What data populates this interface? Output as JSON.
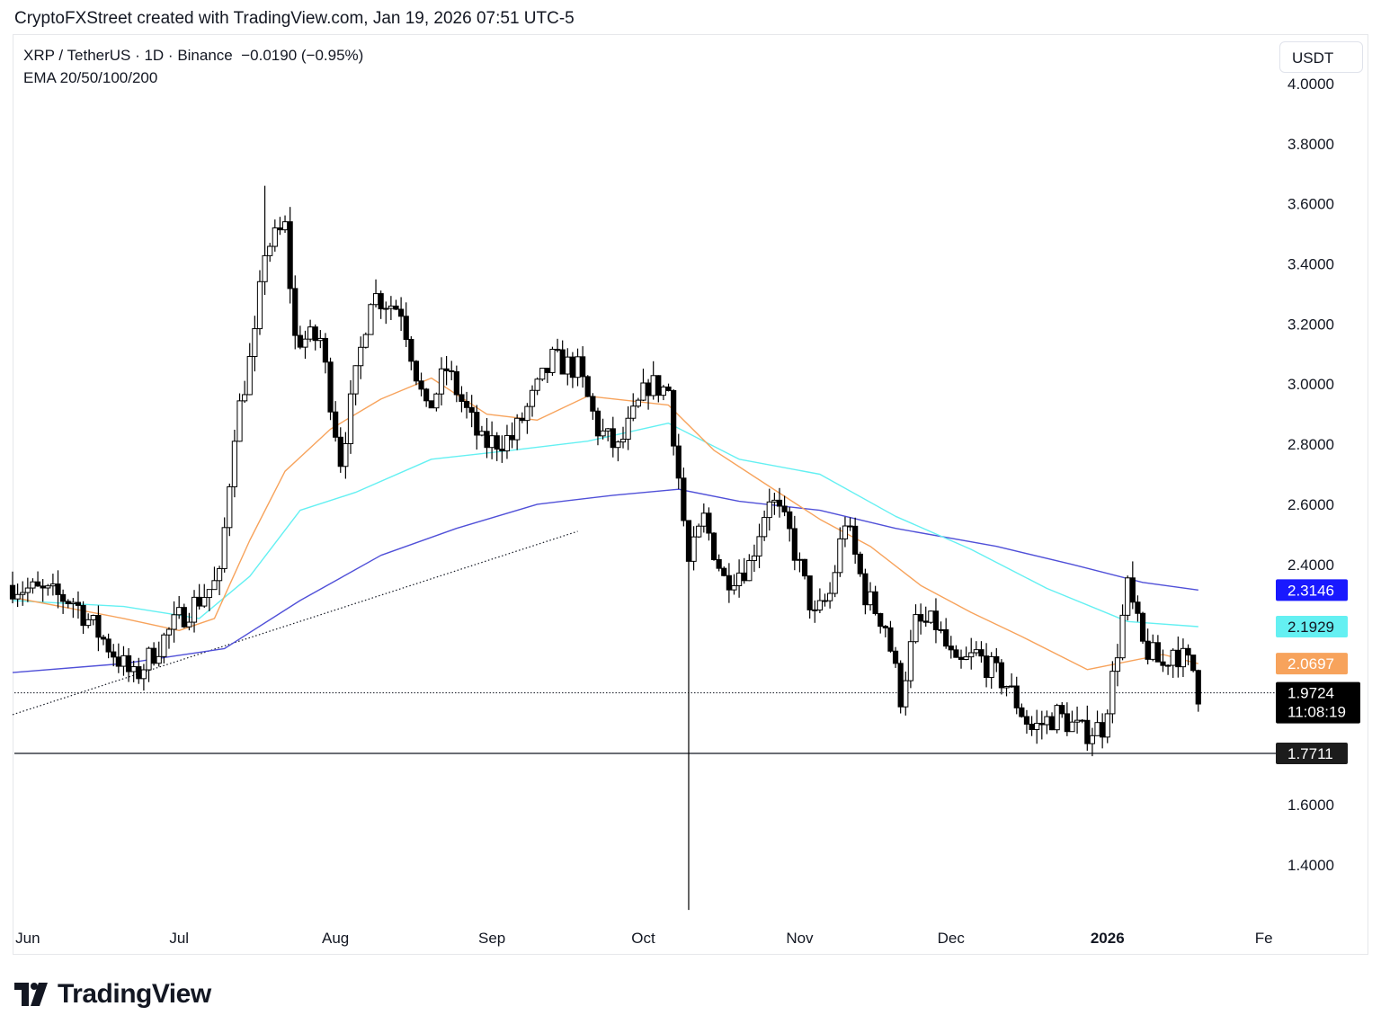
{
  "header": {
    "attribution": "CryptoFXStreet created with TradingView.com, Jan 19, 2026 07:51 UTC-5"
  },
  "legend": {
    "symbol_line": "XRP / TetherUS · 1D · Binance",
    "change": "−0.0190 (−0.95%)",
    "indicator": "EMA 20/50/100/200"
  },
  "toolbar": {
    "currency": "USDT"
  },
  "footer": {
    "brand": "TradingView"
  },
  "colors": {
    "ema20": "#f7a35c",
    "ema50": "#64f0f2",
    "ema100": "#1919ff",
    "ema200_line": "#5050d8",
    "candle": "#000000",
    "grid_text": "#131722"
  },
  "chart_data": {
    "type": "candlestick",
    "interval": "1D",
    "y_range": [
      1.24,
      4.05
    ],
    "y_ticks": [
      "4.0000",
      "3.8000",
      "3.6000",
      "3.4000",
      "3.2000",
      "3.0000",
      "2.8000",
      "2.6000",
      "2.4000",
      "1.6000",
      "1.4000"
    ],
    "x_ticks": [
      {
        "label": "Jun",
        "date": "2025-06-01",
        "bold": false
      },
      {
        "label": "Jul",
        "date": "2025-07-01",
        "bold": false
      },
      {
        "label": "Aug",
        "date": "2025-08-01",
        "bold": false
      },
      {
        "label": "Sep",
        "date": "2025-09-01",
        "bold": false
      },
      {
        "label": "Oct",
        "date": "2025-10-01",
        "bold": false
      },
      {
        "label": "Nov",
        "date": "2025-11-01",
        "bold": false
      },
      {
        "label": "Dec",
        "date": "2025-12-01",
        "bold": false
      },
      {
        "label": "2026",
        "date": "2026-01-01",
        "bold": true
      },
      {
        "label": "Fe",
        "date": "2026-02-01",
        "bold": false
      }
    ],
    "price_labels": [
      {
        "text": "2.3146",
        "value": 2.3146,
        "bg": "#1919ff",
        "fg": "#ffffff"
      },
      {
        "text": "2.1929",
        "value": 2.1929,
        "bg": "#64f0f2",
        "fg": "#131722"
      },
      {
        "text": "2.0697",
        "value": 2.0697,
        "bg": "#f7a35c",
        "fg": "#ffffff"
      },
      {
        "text": "1.9724",
        "value": 1.9724,
        "bg": "#000000",
        "fg": "#ffffff",
        "sub": "11:08:19"
      },
      {
        "text": "1.7711",
        "value": 1.7711,
        "bg": "#1c1c1c",
        "fg": "#ffffff"
      }
    ],
    "current_price": 1.9724,
    "support_level": 1.7711,
    "trendline": [
      {
        "date": "2025-05-29",
        "value": 1.9
      },
      {
        "date": "2025-09-18",
        "value": 2.51
      }
    ],
    "anchors": [
      {
        "date": "2025-05-29",
        "value": 2.33
      },
      {
        "date": "2025-06-10",
        "value": 2.28
      },
      {
        "date": "2025-06-22",
        "value": 2.02
      },
      {
        "date": "2025-07-01",
        "value": 2.22
      },
      {
        "date": "2025-07-09",
        "value": 2.35
      },
      {
        "date": "2025-07-12",
        "value": 2.85
      },
      {
        "date": "2025-07-16",
        "value": 3.15
      },
      {
        "date": "2025-07-18",
        "value": 3.45
      },
      {
        "date": "2025-07-22",
        "value": 3.52
      },
      {
        "date": "2025-07-24",
        "value": 3.15
      },
      {
        "date": "2025-07-29",
        "value": 3.15
      },
      {
        "date": "2025-08-02",
        "value": 2.75
      },
      {
        "date": "2025-08-05",
        "value": 3.02
      },
      {
        "date": "2025-08-08",
        "value": 3.3
      },
      {
        "date": "2025-08-14",
        "value": 3.25
      },
      {
        "date": "2025-08-19",
        "value": 2.9
      },
      {
        "date": "2025-08-23",
        "value": 3.05
      },
      {
        "date": "2025-08-30",
        "value": 2.8
      },
      {
        "date": "2025-09-05",
        "value": 2.82
      },
      {
        "date": "2025-09-13",
        "value": 3.08
      },
      {
        "date": "2025-09-18",
        "value": 3.05
      },
      {
        "date": "2025-09-22",
        "value": 2.85
      },
      {
        "date": "2025-09-26",
        "value": 2.78
      },
      {
        "date": "2025-10-02",
        "value": 3.0
      },
      {
        "date": "2025-10-06",
        "value": 2.98
      },
      {
        "date": "2025-10-10",
        "value": 2.4
      },
      {
        "date": "2025-10-13",
        "value": 2.55
      },
      {
        "date": "2025-10-17",
        "value": 2.35
      },
      {
        "date": "2025-10-22",
        "value": 2.4
      },
      {
        "date": "2025-10-26",
        "value": 2.63
      },
      {
        "date": "2025-10-30",
        "value": 2.5
      },
      {
        "date": "2025-11-04",
        "value": 2.22
      },
      {
        "date": "2025-11-07",
        "value": 2.3
      },
      {
        "date": "2025-11-10",
        "value": 2.55
      },
      {
        "date": "2025-11-14",
        "value": 2.3
      },
      {
        "date": "2025-11-18",
        "value": 2.2
      },
      {
        "date": "2025-11-21",
        "value": 1.96
      },
      {
        "date": "2025-11-24",
        "value": 2.2
      },
      {
        "date": "2025-11-28",
        "value": 2.2
      },
      {
        "date": "2025-12-02",
        "value": 2.05
      },
      {
        "date": "2025-12-06",
        "value": 2.1
      },
      {
        "date": "2025-12-12",
        "value": 2.0
      },
      {
        "date": "2025-12-17",
        "value": 1.85
      },
      {
        "date": "2025-12-22",
        "value": 1.9
      },
      {
        "date": "2025-12-27",
        "value": 1.84
      },
      {
        "date": "2025-12-31",
        "value": 1.86
      },
      {
        "date": "2026-01-02",
        "value": 2.02
      },
      {
        "date": "2026-01-05",
        "value": 2.32
      },
      {
        "date": "2026-01-08",
        "value": 2.13
      },
      {
        "date": "2026-01-12",
        "value": 2.06
      },
      {
        "date": "2026-01-14",
        "value": 2.12
      },
      {
        "date": "2026-01-18",
        "value": 2.05
      },
      {
        "date": "2026-01-19",
        "value": 1.9724
      }
    ],
    "events": [
      {
        "date": "2025-10-10",
        "high": 2.48,
        "low": 1.25
      },
      {
        "date": "2025-07-18",
        "high": 3.66
      },
      {
        "date": "2026-01-06",
        "high": 2.41
      }
    ],
    "ema20": [
      {
        "date": "2025-05-29",
        "value": 2.29
      },
      {
        "date": "2025-06-20",
        "value": 2.22
      },
      {
        "date": "2025-07-01",
        "value": 2.18
      },
      {
        "date": "2025-07-08",
        "value": 2.22
      },
      {
        "date": "2025-07-15",
        "value": 2.48
      },
      {
        "date": "2025-07-22",
        "value": 2.71
      },
      {
        "date": "2025-07-31",
        "value": 2.85
      },
      {
        "date": "2025-08-10",
        "value": 2.95
      },
      {
        "date": "2025-08-20",
        "value": 3.02
      },
      {
        "date": "2025-08-31",
        "value": 2.9
      },
      {
        "date": "2025-09-10",
        "value": 2.88
      },
      {
        "date": "2025-09-20",
        "value": 2.96
      },
      {
        "date": "2025-10-06",
        "value": 2.93
      },
      {
        "date": "2025-10-15",
        "value": 2.78
      },
      {
        "date": "2025-10-25",
        "value": 2.67
      },
      {
        "date": "2025-11-05",
        "value": 2.55
      },
      {
        "date": "2025-11-15",
        "value": 2.46
      },
      {
        "date": "2025-11-25",
        "value": 2.33
      },
      {
        "date": "2025-12-05",
        "value": 2.24
      },
      {
        "date": "2025-12-15",
        "value": 2.16
      },
      {
        "date": "2025-12-28",
        "value": 2.05
      },
      {
        "date": "2026-01-06",
        "value": 2.08
      },
      {
        "date": "2026-01-12",
        "value": 2.1
      },
      {
        "date": "2026-01-19",
        "value": 2.0697
      }
    ],
    "ema50": [
      {
        "date": "2025-05-29",
        "value": 2.28
      },
      {
        "date": "2025-06-20",
        "value": 2.26
      },
      {
        "date": "2025-07-05",
        "value": 2.22
      },
      {
        "date": "2025-07-15",
        "value": 2.36
      },
      {
        "date": "2025-07-25",
        "value": 2.58
      },
      {
        "date": "2025-08-05",
        "value": 2.64
      },
      {
        "date": "2025-08-20",
        "value": 2.75
      },
      {
        "date": "2025-09-05",
        "value": 2.78
      },
      {
        "date": "2025-09-20",
        "value": 2.81
      },
      {
        "date": "2025-10-06",
        "value": 2.87
      },
      {
        "date": "2025-10-20",
        "value": 2.75
      },
      {
        "date": "2025-11-05",
        "value": 2.7
      },
      {
        "date": "2025-11-20",
        "value": 2.56
      },
      {
        "date": "2025-12-05",
        "value": 2.45
      },
      {
        "date": "2025-12-20",
        "value": 2.32
      },
      {
        "date": "2026-01-05",
        "value": 2.21
      },
      {
        "date": "2026-01-19",
        "value": 2.1929
      }
    ],
    "ema200": [
      {
        "date": "2025-05-29",
        "value": 2.04
      },
      {
        "date": "2025-06-20",
        "value": 2.07
      },
      {
        "date": "2025-07-10",
        "value": 2.12
      },
      {
        "date": "2025-07-25",
        "value": 2.28
      },
      {
        "date": "2025-08-10",
        "value": 2.43
      },
      {
        "date": "2025-08-25",
        "value": 2.52
      },
      {
        "date": "2025-09-10",
        "value": 2.6
      },
      {
        "date": "2025-09-25",
        "value": 2.63
      },
      {
        "date": "2025-10-08",
        "value": 2.65
      },
      {
        "date": "2025-10-20",
        "value": 2.61
      },
      {
        "date": "2025-11-05",
        "value": 2.58
      },
      {
        "date": "2025-11-20",
        "value": 2.52
      },
      {
        "date": "2025-12-10",
        "value": 2.46
      },
      {
        "date": "2025-12-25",
        "value": 2.4
      },
      {
        "date": "2026-01-08",
        "value": 2.34
      },
      {
        "date": "2026-01-19",
        "value": 2.3146
      }
    ]
  }
}
